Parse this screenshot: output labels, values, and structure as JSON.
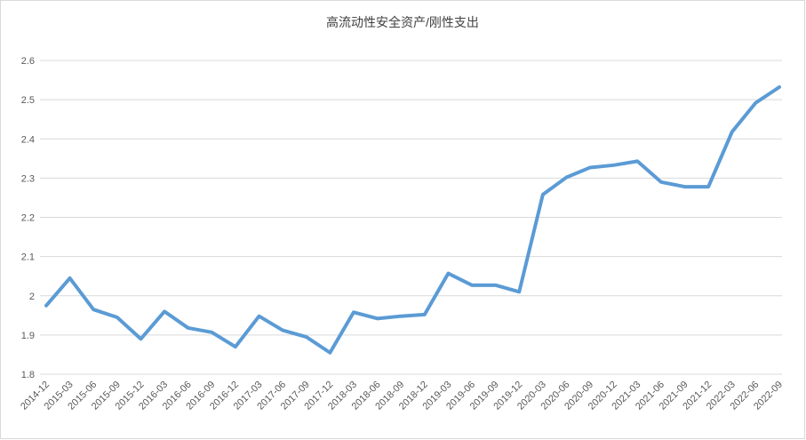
{
  "chart_data": {
    "type": "line",
    "title": "高流动性安全资产/刚性支出",
    "categories": [
      "2014-12",
      "2015-03",
      "2015-06",
      "2015-09",
      "2015-12",
      "2016-03",
      "2016-06",
      "2016-09",
      "2016-12",
      "2017-03",
      "2017-06",
      "2017-09",
      "2017-12",
      "2018-03",
      "2018-06",
      "2018-09",
      "2018-12",
      "2019-03",
      "2019-06",
      "2019-09",
      "2019-12",
      "2020-03",
      "2020-06",
      "2020-09",
      "2020-12",
      "2021-03",
      "2021-06",
      "2021-09",
      "2021-12",
      "2022-03",
      "2022-06",
      "2022-09"
    ],
    "series": [
      {
        "name": "高流动性安全资产/刚性支出",
        "color": "#5b9bd5",
        "values": [
          1.975,
          2.045,
          1.965,
          1.945,
          1.89,
          1.96,
          1.918,
          1.907,
          1.87,
          1.948,
          1.912,
          1.895,
          1.855,
          1.958,
          1.942,
          1.948,
          1.952,
          2.057,
          2.027,
          2.027,
          2.01,
          2.258,
          2.302,
          2.327,
          2.333,
          2.343,
          2.29,
          2.278,
          2.278,
          2.418,
          2.492,
          2.532
        ]
      }
    ],
    "ylim": [
      1.8,
      2.6
    ],
    "yticks": [
      1.8,
      1.9,
      2,
      2.1,
      2.2,
      2.3,
      2.4,
      2.5,
      2.6
    ],
    "grid": true
  }
}
